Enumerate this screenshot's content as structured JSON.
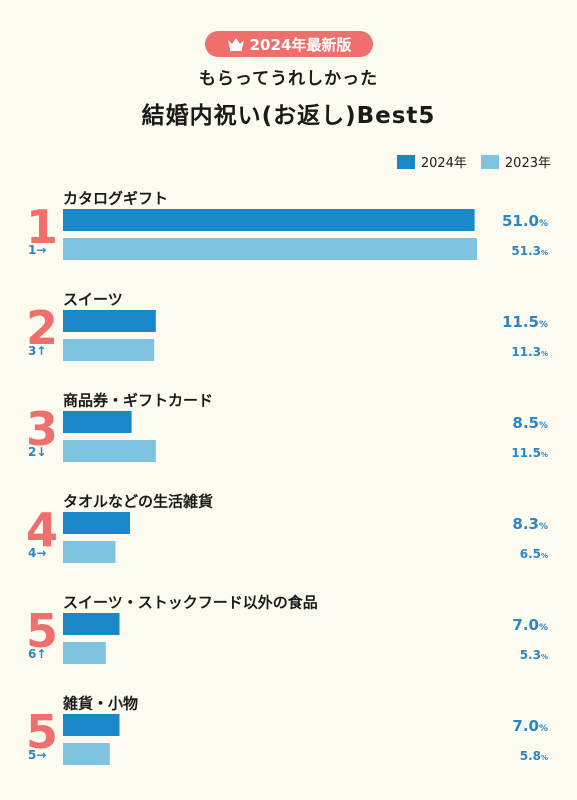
{
  "header": {
    "badge_text": "2024年最新版",
    "subtitle": "もらってうれしかった",
    "title": "結婚内祝い(お返し)Best5"
  },
  "colors": {
    "background": "#fdfbf0",
    "accent": "#ef6f6c",
    "series_2024": "#1888c8",
    "series_2023": "#7ec3e0",
    "value_text": "#2a86c4"
  },
  "chart_data": {
    "type": "bar",
    "orientation": "horizontal",
    "value_unit": "%",
    "xlim": [
      0,
      51.3
    ],
    "legend_position": "top-right",
    "series": [
      {
        "name": "2024年",
        "values": [
          51.0,
          11.5,
          8.5,
          8.3,
          7.0,
          7.0
        ]
      },
      {
        "name": "2023年",
        "values": [
          51.3,
          11.3,
          11.5,
          6.5,
          5.3,
          5.8
        ]
      }
    ],
    "categories": [
      {
        "rank": "1",
        "label": "カタログギフト",
        "value_2024": "51.0",
        "value_2023": "51.3",
        "prev_rank": "1→"
      },
      {
        "rank": "2",
        "label": "スイーツ",
        "value_2024": "11.5",
        "value_2023": "11.3",
        "prev_rank": "3↑"
      },
      {
        "rank": "3",
        "label": "商品券・ギフトカード",
        "value_2024": "8.5",
        "value_2023": "11.5",
        "prev_rank": "2↓"
      },
      {
        "rank": "4",
        "label": "タオルなどの生活雑貨",
        "value_2024": "8.3",
        "value_2023": "6.5",
        "prev_rank": "4→"
      },
      {
        "rank": "5",
        "label": "スイーツ・ストックフード以外の食品",
        "value_2024": "7.0",
        "value_2023": "5.3",
        "prev_rank": "6↑"
      },
      {
        "rank": "5",
        "label": "雑貨・小物",
        "value_2024": "7.0",
        "value_2023": "5.8",
        "prev_rank": "5→"
      }
    ],
    "unit_label": "%"
  }
}
